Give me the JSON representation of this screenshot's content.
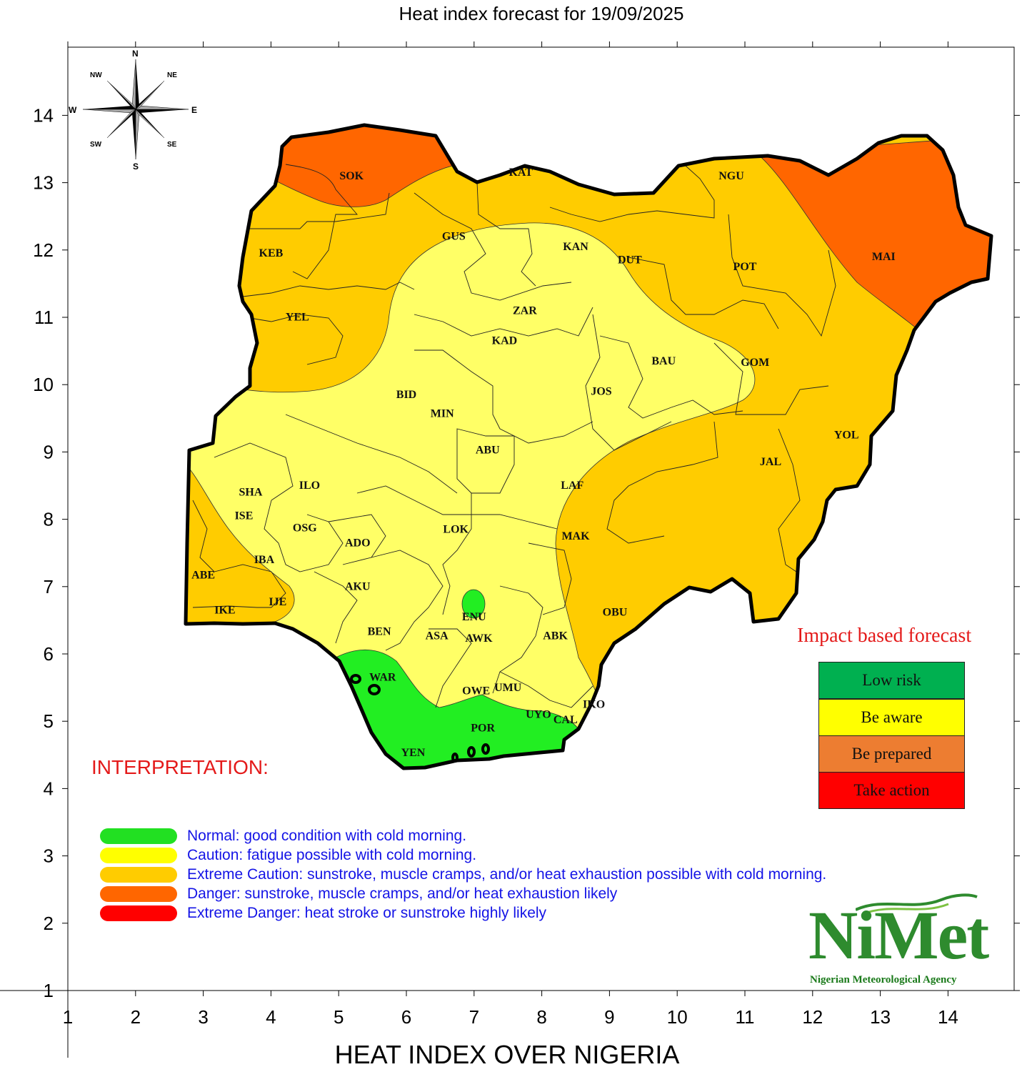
{
  "title": "Heat index forecast for 19/09/2025",
  "footer": "HEAT INDEX OVER NIGERIA",
  "axes": {
    "x_ticks": [
      "1",
      "2",
      "3",
      "4",
      "5",
      "6",
      "7",
      "8",
      "9",
      "10",
      "11",
      "12",
      "13",
      "14"
    ],
    "y_ticks": [
      "14",
      "13",
      "12",
      "11",
      "10",
      "9",
      "8",
      "7",
      "6",
      "5",
      "4",
      "3",
      "2",
      "1"
    ]
  },
  "compass": {
    "n": "N",
    "s": "S",
    "e": "E",
    "w": "W",
    "ne": "NE",
    "nw": "NW",
    "se": "SE",
    "sw": "SW"
  },
  "states": [
    {
      "label": "SOK",
      "x": 5.19,
      "y": 13.05
    },
    {
      "label": "KAT",
      "x": 7.69,
      "y": 13.1
    },
    {
      "label": "NGU",
      "x": 10.8,
      "y": 13.05
    },
    {
      "label": "KEB",
      "x": 4.0,
      "y": 11.9
    },
    {
      "label": "GUS",
      "x": 6.7,
      "y": 12.15
    },
    {
      "label": "KAN",
      "x": 8.5,
      "y": 12.0
    },
    {
      "label": "DUT",
      "x": 9.3,
      "y": 11.8
    },
    {
      "label": "POT",
      "x": 11.0,
      "y": 11.7
    },
    {
      "label": "MAI",
      "x": 13.05,
      "y": 11.85
    },
    {
      "label": "ZAR",
      "x": 7.75,
      "y": 11.05
    },
    {
      "label": "YEL",
      "x": 4.39,
      "y": 10.95
    },
    {
      "label": "KAD",
      "x": 7.45,
      "y": 10.6
    },
    {
      "label": "BAU",
      "x": 9.8,
      "y": 10.3
    },
    {
      "label": "GOM",
      "x": 11.15,
      "y": 10.28
    },
    {
      "label": "JOS",
      "x": 8.88,
      "y": 9.85
    },
    {
      "label": "BID",
      "x": 6.0,
      "y": 9.8
    },
    {
      "label": "MIN",
      "x": 6.53,
      "y": 9.52
    },
    {
      "label": "ABU",
      "x": 7.2,
      "y": 8.98
    },
    {
      "label": "YOL",
      "x": 12.5,
      "y": 9.2
    },
    {
      "label": "JAL",
      "x": 11.38,
      "y": 8.8
    },
    {
      "label": "SHA",
      "x": 3.7,
      "y": 8.35
    },
    {
      "label": "ILO",
      "x": 4.57,
      "y": 8.45
    },
    {
      "label": "LAF",
      "x": 8.45,
      "y": 8.45
    },
    {
      "label": "ISE",
      "x": 3.6,
      "y": 8.0
    },
    {
      "label": "OSG",
      "x": 4.5,
      "y": 7.82
    },
    {
      "label": "LOK",
      "x": 6.73,
      "y": 7.8
    },
    {
      "label": "MAK",
      "x": 8.5,
      "y": 7.7
    },
    {
      "label": "ADO",
      "x": 5.28,
      "y": 7.6
    },
    {
      "label": "IBA",
      "x": 3.9,
      "y": 7.35
    },
    {
      "label": "ABE",
      "x": 3.0,
      "y": 7.12
    },
    {
      "label": "AKU",
      "x": 5.28,
      "y": 6.95
    },
    {
      "label": "IJE",
      "x": 4.1,
      "y": 6.72
    },
    {
      "label": "IKE",
      "x": 3.32,
      "y": 6.6
    },
    {
      "label": "OBU",
      "x": 9.08,
      "y": 6.57
    },
    {
      "label": "ENU",
      "x": 7.0,
      "y": 6.5
    },
    {
      "label": "BEN",
      "x": 5.6,
      "y": 6.28
    },
    {
      "label": "ASA",
      "x": 6.45,
      "y": 6.22
    },
    {
      "label": "AWK",
      "x": 7.07,
      "y": 6.18
    },
    {
      "label": "ABK",
      "x": 8.2,
      "y": 6.22
    },
    {
      "label": "WAR",
      "x": 5.65,
      "y": 5.6
    },
    {
      "label": "OWE",
      "x": 7.03,
      "y": 5.4
    },
    {
      "label": "UMU",
      "x": 7.5,
      "y": 5.45
    },
    {
      "label": "IKO",
      "x": 8.77,
      "y": 5.2
    },
    {
      "label": "UYO",
      "x": 7.95,
      "y": 5.05
    },
    {
      "label": "CAL",
      "x": 8.35,
      "y": 4.97
    },
    {
      "label": "POR",
      "x": 7.13,
      "y": 4.85
    },
    {
      "label": "YEN",
      "x": 6.1,
      "y": 4.48
    }
  ],
  "interpretation": {
    "title": "INTERPRETATION:",
    "items": [
      {
        "text": "Normal: good condition with cold morning.",
        "color": "#22e022"
      },
      {
        "text": "Caution: fatigue possible  with cold morning.",
        "color": "#ffff00"
      },
      {
        "text": "Extreme Caution: sunstroke, muscle cramps, and/or heat exhaustion possible  with cold morning.",
        "color": "#ffcc00"
      },
      {
        "text": "Danger: sunstroke, muscle cramps, and/or heat exhaustion likely",
        "color": "#ff6600"
      },
      {
        "text": "Extreme Danger: heat stroke or sunstroke highly likely",
        "color": "#ff0000"
      }
    ]
  },
  "impact": {
    "title": "Impact based forecast",
    "levels": [
      {
        "label": "Low risk",
        "color": "#00b050"
      },
      {
        "label": "Be aware",
        "color": "#ffff00"
      },
      {
        "label": "Be prepared",
        "color": "#ed7d31"
      },
      {
        "label": "Take action",
        "color": "#ff0000"
      }
    ]
  },
  "zone_colors": {
    "normal": "#22ee22",
    "caution": "#ffff66",
    "extreme_caution": "#ffcc00",
    "danger": "#ff6600"
  },
  "logo": {
    "word": "NiMet",
    "subtitle": "Nigerian Meteorological Agency"
  }
}
